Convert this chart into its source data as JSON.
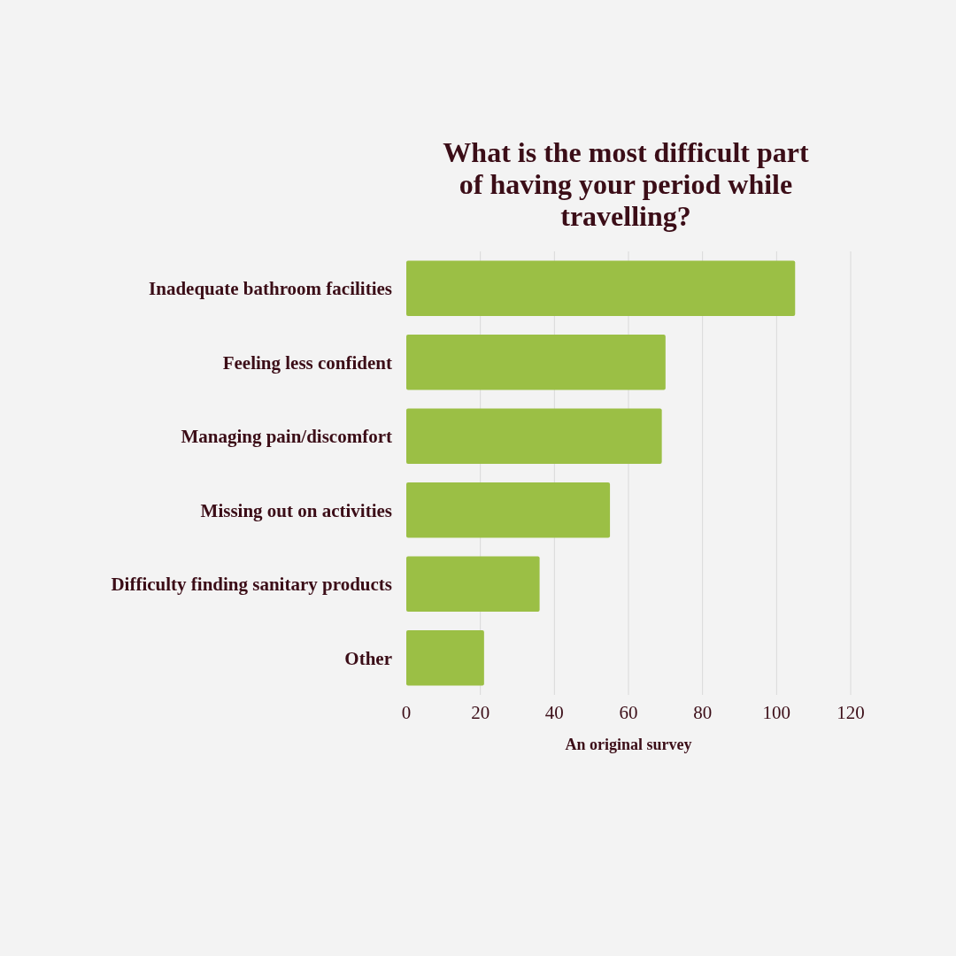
{
  "chart_data": {
    "type": "bar",
    "orientation": "horizontal",
    "title": "What is the most difficult part of having your period while travelling?",
    "categories": [
      "Inadequate bathroom facilities",
      "Feeling less confident",
      "Managing pain/discomfort",
      "Missing out on activities",
      "Difficulty finding sanitary products",
      "Other"
    ],
    "values": [
      105,
      70,
      69,
      55,
      36,
      21
    ],
    "color": "#9bbf45",
    "xlim": [
      0,
      120
    ],
    "xticks": [
      0,
      20,
      40,
      60,
      80,
      100,
      120
    ],
    "grid": "x",
    "annotations": [
      "An original survey"
    ]
  }
}
